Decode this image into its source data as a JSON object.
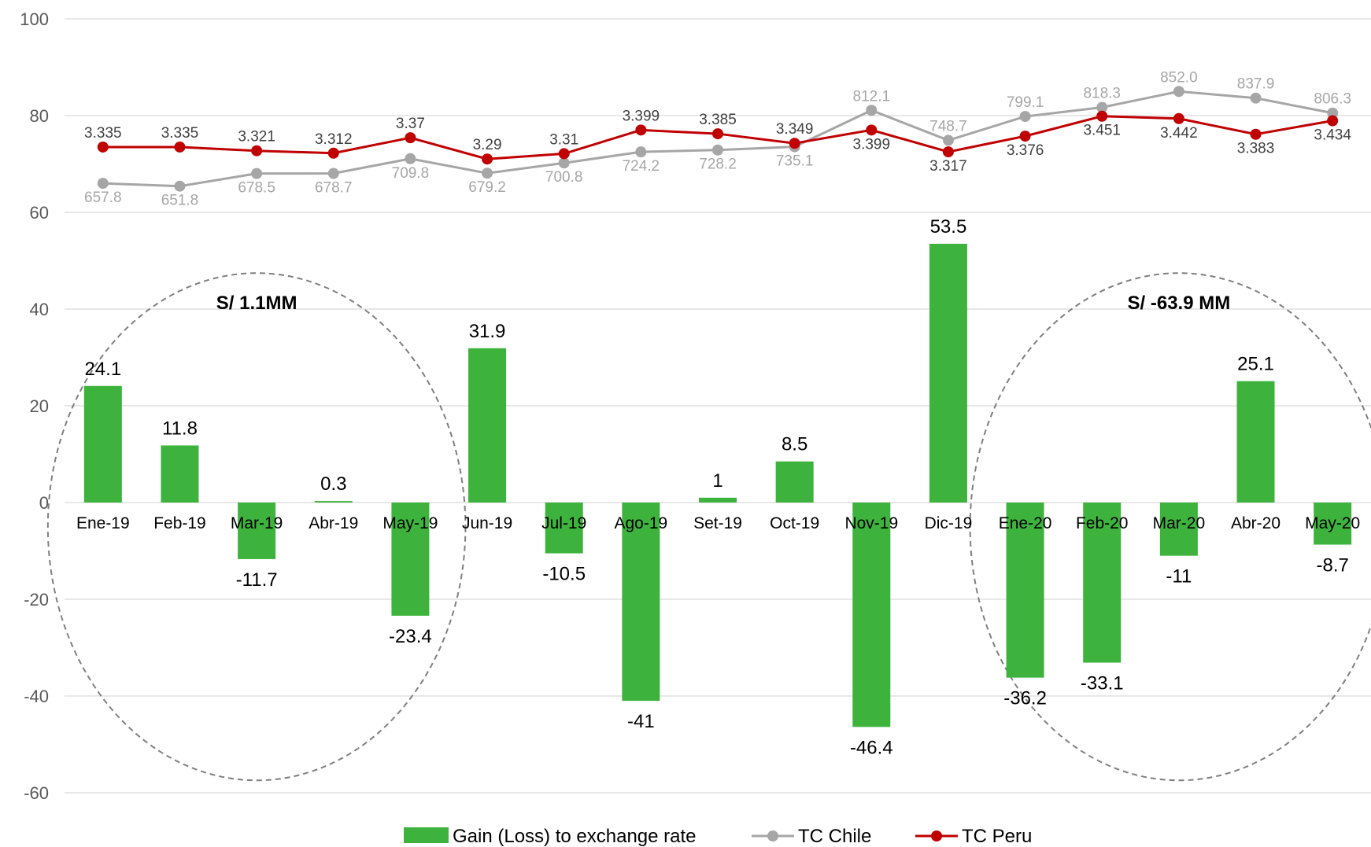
{
  "chart_data": {
    "type": "bar",
    "categories": [
      "Ene-19",
      "Feb-19",
      "Mar-19",
      "Abr-19",
      "May-19",
      "Jun-19",
      "Jul-19",
      "Ago-19",
      "Set-19",
      "Oct-19",
      "Nov-19",
      "Dic-19",
      "Ene-20",
      "Feb-20",
      "Mar-20",
      "Abr-20",
      "May-20"
    ],
    "ylim": [
      -60,
      100
    ],
    "yticks": [
      100,
      80,
      60,
      40,
      20,
      0,
      -20,
      -40,
      -60
    ],
    "grid": true,
    "legend_position": "bottom",
    "series": [
      {
        "name": "Gain (Loss) to exchange rate",
        "type": "bar",
        "color": "#3DB33D",
        "values": [
          24.1,
          11.8,
          -11.7,
          0.3,
          -23.4,
          31.9,
          -10.5,
          -41,
          1,
          8.5,
          -46.4,
          53.5,
          -36.2,
          -33.1,
          -11,
          25.1,
          -8.7
        ],
        "labels": [
          "24.1",
          "11.8",
          "-11.7",
          "0.3",
          "-23.4",
          "31.9",
          "-10.5",
          "-41",
          "1",
          "8.5",
          "-46.4",
          "53.5",
          "-36.2",
          "-33.1",
          "-11",
          "25.1",
          "-8.7"
        ]
      },
      {
        "name": "TC Chile",
        "type": "line",
        "color": "#A6A6A6",
        "values": [
          657.8,
          651.8,
          678.5,
          678.7,
          709.8,
          679.2,
          700.8,
          724.2,
          728.2,
          735.1,
          812.1,
          748.7,
          799.1,
          818.3,
          852.0,
          837.9,
          806.3
        ],
        "labels": [
          "657.8",
          "651.8",
          "678.5",
          "678.7",
          "709.8",
          "679.2",
          "700.8",
          "724.2",
          "728.2",
          "735.1",
          "812.1",
          "748.7",
          "799.1",
          "818.3",
          "852.0",
          "837.9",
          "806.3"
        ]
      },
      {
        "name": "TC Peru",
        "type": "line",
        "color": "#C00000",
        "values": [
          3.335,
          3.335,
          3.321,
          3.312,
          3.37,
          3.29,
          3.31,
          3.399,
          3.385,
          3.349,
          3.399,
          3.317,
          3.376,
          3.451,
          3.442,
          3.383,
          3.434
        ],
        "labels": [
          "3.335",
          "3.335",
          "3.321",
          "3.312",
          "3.37",
          "3.29",
          "3.31",
          "3.399",
          "3.385",
          "3.349",
          "3.399",
          "3.317",
          "3.376",
          "3.451",
          "3.442",
          "3.383",
          "3.434"
        ]
      }
    ],
    "annotations": [
      {
        "text": "S/ 1.1MM",
        "group": [
          "Ene-19",
          "May-19"
        ]
      },
      {
        "text": "S/ -63.9 MM",
        "group": [
          "Ene-20",
          "May-20"
        ]
      }
    ]
  }
}
